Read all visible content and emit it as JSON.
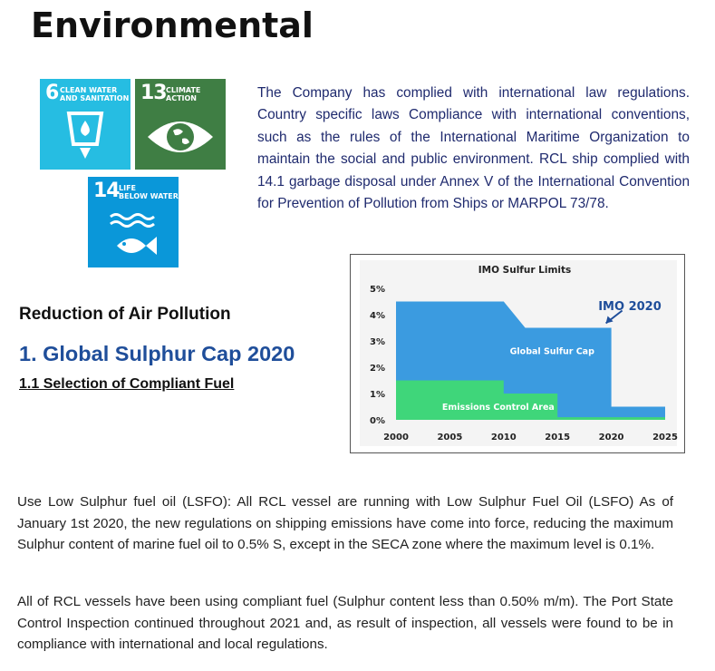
{
  "page": {
    "title": "Environmental"
  },
  "sdg_tiles": [
    {
      "number": "6",
      "label": "CLEAN WATER\nAND SANITATION",
      "color": "#26bde2",
      "icon": "water-glass-icon"
    },
    {
      "number": "13",
      "label": "CLIMATE\nACTION",
      "color": "#3f7e44",
      "icon": "eye-earth-icon"
    },
    {
      "number": "14",
      "label": "LIFE\nBELOW WATER",
      "color": "#0a97d9",
      "icon": "fish-waves-icon"
    }
  ],
  "intro": {
    "text": "The Company has complied with international law regulations. Country specific laws Compliance with international conventions, such as the rules of the International Maritime Organization to maintain the social and public environment. RCL ship complied with 14.1 garbage disposal under Annex V of the International Convention for Prevention of Pollution from Ships or MARPOL 73/78."
  },
  "sections": {
    "reduction": "Reduction of Air Pollution",
    "global_cap": "1. Global Sulphur Cap 2020",
    "selection": "1.1 Selection of Compliant Fuel"
  },
  "chart_data": {
    "type": "area",
    "title": "IMO Sulfur Limits",
    "xlabel": "",
    "ylabel": "",
    "xlim": [
      2000,
      2025
    ],
    "ylim": [
      0,
      5
    ],
    "x_ticks": [
      "2000",
      "2005",
      "2010",
      "2015",
      "2020",
      "2025"
    ],
    "y_ticks": [
      "0%",
      "1%",
      "2%",
      "3%",
      "4%",
      "5%"
    ],
    "grid": false,
    "series": [
      {
        "name": "Global Sulfur Cap",
        "color": "#3b9be0",
        "points": [
          [
            2000,
            4.5
          ],
          [
            2010,
            4.5
          ],
          [
            2012,
            3.5
          ],
          [
            2020,
            3.5
          ],
          [
            2020,
            0.5
          ],
          [
            2025,
            0.5
          ]
        ]
      },
      {
        "name": "Emissions Control Area",
        "color": "#3fd67a",
        "points": [
          [
            2000,
            1.5
          ],
          [
            2010,
            1.5
          ],
          [
            2010,
            1.0
          ],
          [
            2015,
            1.0
          ],
          [
            2015,
            0.1
          ],
          [
            2025,
            0.1
          ]
        ]
      }
    ],
    "annotation": {
      "text": "IMO 2020",
      "color": "#1f4e9a",
      "points_to": [
        2020,
        3.5
      ]
    }
  },
  "paragraphs": [
    "Use Low Sulphur fuel oil (LSFO): All RCL vessel are running with Low Sulphur Fuel Oil (LSFO) As of January 1st 2020, the new regulations on shipping emissions have come into force, reducing the maximum Sulphur content of marine fuel oil to 0.5% S, except in the SECA zone where the maximum level is 0.1%.",
    "All of RCL vessels have been using compliant fuel (Sulphur content less than 0.50% m/m). The Port State Control Inspection continued throughout 2021 and, as result of inspection, all vessels were found to be in compliance with international and local regulations."
  ]
}
